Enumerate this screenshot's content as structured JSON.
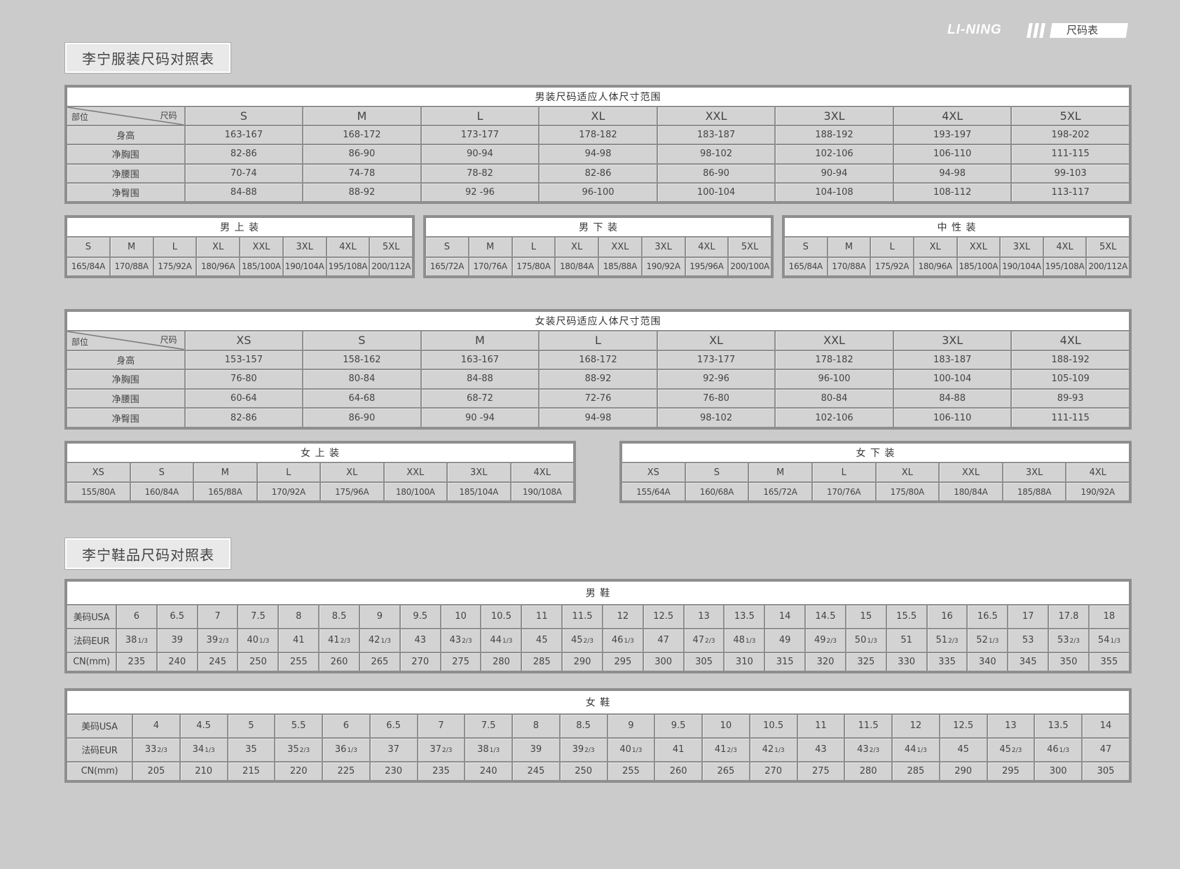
{
  "header": {
    "brand": "LI-NING",
    "tag": "尺码表"
  },
  "apparel_title": "李宁服装尺码对照表",
  "shoes_title": "李宁鞋品尺码对照表",
  "men_body": {
    "title": "男装尺码适应人体尺寸范围",
    "corner_left": "部位",
    "corner_right": "尺码",
    "sizes": [
      "S",
      "M",
      "L",
      "XL",
      "XXL",
      "3XL",
      "4XL",
      "5XL"
    ],
    "rows": [
      {
        "label": "身高",
        "values": [
          "163-167",
          "168-172",
          "173-177",
          "178-182",
          "183-187",
          "188-192",
          "193-197",
          "198-202"
        ]
      },
      {
        "label": "净胸围",
        "values": [
          "82-86",
          "86-90",
          "90-94",
          "94-98",
          "98-102",
          "102-106",
          "106-110",
          "111-115"
        ]
      },
      {
        "label": "净腰围",
        "values": [
          "70-74",
          "74-78",
          "78-82",
          "82-86",
          "86-90",
          "90-94",
          "94-98",
          "99-103"
        ]
      },
      {
        "label": "净臀围",
        "values": [
          "84-88",
          "88-92",
          "92 -96",
          "96-100",
          "100-104",
          "104-108",
          "108-112",
          "113-117"
        ]
      }
    ]
  },
  "men_sub": [
    {
      "title": "男 上 装",
      "sizes": [
        "S",
        "M",
        "L",
        "XL",
        "XXL",
        "3XL",
        "4XL",
        "5XL"
      ],
      "values": [
        "165/84A",
        "170/88A",
        "175/92A",
        "180/96A",
        "185/100A",
        "190/104A",
        "195/108A",
        "200/112A"
      ]
    },
    {
      "title": "男 下 装",
      "sizes": [
        "S",
        "M",
        "L",
        "XL",
        "XXL",
        "3XL",
        "4XL",
        "5XL"
      ],
      "values": [
        "165/72A",
        "170/76A",
        "175/80A",
        "180/84A",
        "185/88A",
        "190/92A",
        "195/96A",
        "200/100A"
      ]
    },
    {
      "title": "中 性 装",
      "sizes": [
        "S",
        "M",
        "L",
        "XL",
        "XXL",
        "3XL",
        "4XL",
        "5XL"
      ],
      "values": [
        "165/84A",
        "170/88A",
        "175/92A",
        "180/96A",
        "185/100A",
        "190/104A",
        "195/108A",
        "200/112A"
      ]
    }
  ],
  "women_body": {
    "title": "女装尺码适应人体尺寸范围",
    "corner_left": "部位",
    "corner_right": "尺码",
    "sizes": [
      "XS",
      "S",
      "M",
      "L",
      "XL",
      "XXL",
      "3XL",
      "4XL"
    ],
    "rows": [
      {
        "label": "身高",
        "values": [
          "153-157",
          "158-162",
          "163-167",
          "168-172",
          "173-177",
          "178-182",
          "183-187",
          "188-192"
        ]
      },
      {
        "label": "净胸围",
        "values": [
          "76-80",
          "80-84",
          "84-88",
          "88-92",
          "92-96",
          "96-100",
          "100-104",
          "105-109"
        ]
      },
      {
        "label": "净腰围",
        "values": [
          "60-64",
          "64-68",
          "68-72",
          "72-76",
          "76-80",
          "80-84",
          "84-88",
          "89-93"
        ]
      },
      {
        "label": "净臀围",
        "values": [
          "82-86",
          "86-90",
          "90 -94",
          "94-98",
          "98-102",
          "102-106",
          "106-110",
          "111-115"
        ]
      }
    ]
  },
  "women_sub": [
    {
      "title": "女 上 装",
      "sizes": [
        "XS",
        "S",
        "M",
        "L",
        "XL",
        "XXL",
        "3XL",
        "4XL"
      ],
      "values": [
        "155/80A",
        "160/84A",
        "165/88A",
        "170/92A",
        "175/96A",
        "180/100A",
        "185/104A",
        "190/108A"
      ]
    },
    {
      "title": "女 下 装",
      "sizes": [
        "XS",
        "S",
        "M",
        "L",
        "XL",
        "XXL",
        "3XL",
        "4XL"
      ],
      "values": [
        "155/64A",
        "160/68A",
        "165/72A",
        "170/76A",
        "175/80A",
        "180/84A",
        "185/88A",
        "190/92A"
      ]
    }
  ],
  "men_shoes": {
    "title": "男 鞋",
    "rows": [
      {
        "label": "美码USA",
        "values": [
          "6",
          "6.5",
          "7",
          "7.5",
          "8",
          "8.5",
          "9",
          "9.5",
          "10",
          "10.5",
          "11",
          "11.5",
          "12",
          "12.5",
          "13",
          "13.5",
          "14",
          "14.5",
          "15",
          "15.5",
          "16",
          "16.5",
          "17",
          "17.8",
          "18"
        ]
      },
      {
        "label": "法码EUR",
        "values": [
          "38 1/3",
          "39",
          "39 2/3",
          "40 1/3",
          "41",
          "41 2/3",
          "42 1/3",
          "43",
          "43 2/3",
          "44 1/3",
          "45",
          "45 2/3",
          "46 1/3",
          "47",
          "47 2/3",
          "48 1/3",
          "49",
          "49 2/3",
          "50 1/3",
          "51",
          "51 2/3",
          "52 1/3",
          "53",
          "53 2/3",
          "54 1/3"
        ]
      },
      {
        "label": "CN(mm)",
        "values": [
          "235",
          "240",
          "245",
          "250",
          "255",
          "260",
          "265",
          "270",
          "275",
          "280",
          "285",
          "290",
          "295",
          "300",
          "305",
          "310",
          "315",
          "320",
          "325",
          "330",
          "335",
          "340",
          "345",
          "350",
          "355"
        ]
      }
    ]
  },
  "women_shoes": {
    "title": "女 鞋",
    "rows": [
      {
        "label": "美码USA",
        "values": [
          "4",
          "4.5",
          "5",
          "5.5",
          "6",
          "6.5",
          "7",
          "7.5",
          "8",
          "8.5",
          "9",
          "9.5",
          "10",
          "10.5",
          "11",
          "11.5",
          "12",
          "12.5",
          "13",
          "13.5",
          "14"
        ]
      },
      {
        "label": "法码EUR",
        "values": [
          "33 2/3",
          "34 1/3",
          "35",
          "35 2/3",
          "36 1/3",
          "37",
          "37 2/3",
          "38 1/3",
          "39",
          "39 2/3",
          "40 1/3",
          "41",
          "41 2/3",
          "42 1/3",
          "43",
          "43 2/3",
          "44 1/3",
          "45",
          "45 2/3",
          "46 1/3",
          "47"
        ]
      },
      {
        "label": "CN(mm)",
        "values": [
          "205",
          "210",
          "215",
          "220",
          "225",
          "230",
          "235",
          "240",
          "245",
          "250",
          "255",
          "260",
          "265",
          "270",
          "275",
          "280",
          "285",
          "290",
          "295",
          "300",
          "305"
        ]
      }
    ]
  }
}
